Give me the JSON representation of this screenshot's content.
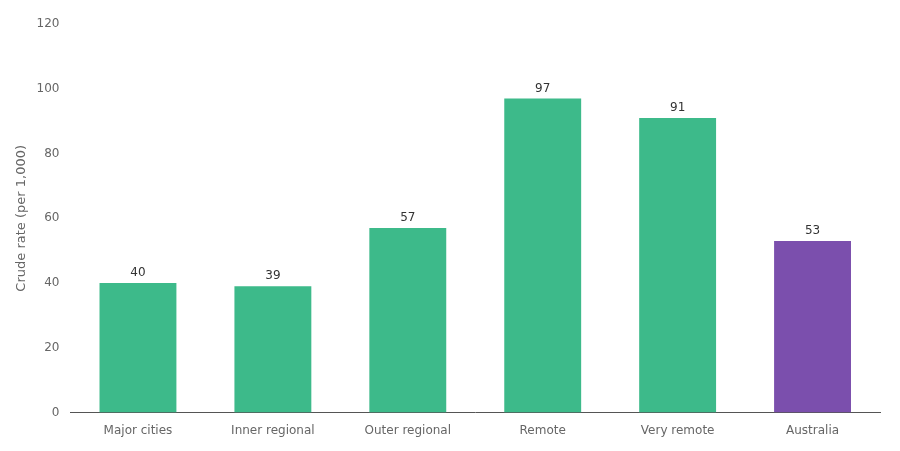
{
  "chart_data": {
    "type": "bar",
    "categories": [
      "Major cities",
      "Inner regional",
      "Outer regional",
      "Remote",
      "Very remote",
      "Australia"
    ],
    "values": [
      40,
      39,
      57,
      97,
      91,
      53
    ],
    "colors": [
      "#3dba8a",
      "#3dba8a",
      "#3dba8a",
      "#3dba8a",
      "#3dba8a",
      "#7b4fad"
    ],
    "ylabel": "Crude rate (per 1,000)",
    "ylim": [
      0,
      120
    ],
    "yticks": [
      0,
      20,
      40,
      60,
      80,
      100,
      120
    ],
    "grid": false,
    "data_labels": true
  }
}
